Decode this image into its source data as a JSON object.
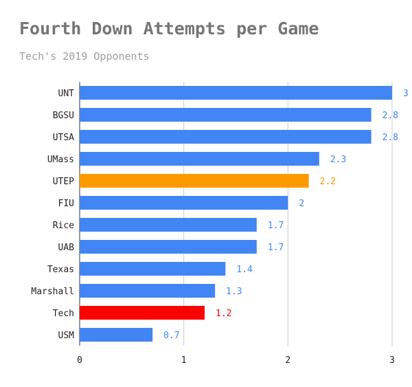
{
  "chart_data": {
    "type": "bar",
    "orientation": "horizontal",
    "title": "Fourth Down Attempts per Game",
    "subtitle": "Tech's 2019 Opponents",
    "categories": [
      "UNT",
      "BGSU",
      "UTSA",
      "UMass",
      "UTEP",
      "FIU",
      "Rice",
      "UAB",
      "Texas",
      "Marshall",
      "Tech",
      "USM"
    ],
    "values": [
      3,
      2.8,
      2.8,
      2.3,
      2.2,
      2,
      1.7,
      1.7,
      1.4,
      1.3,
      1.2,
      0.7
    ],
    "value_labels": [
      "3",
      "2.8",
      "2.8",
      "2.3",
      "2.2",
      "2",
      "1.7",
      "1.7",
      "1.4",
      "1.3",
      "1.2",
      "0.7"
    ],
    "bar_colors": [
      "#4285f4",
      "#4285f4",
      "#4285f4",
      "#4285f4",
      "#ff9900",
      "#4285f4",
      "#4285f4",
      "#4285f4",
      "#4285f4",
      "#4285f4",
      "#ff0000",
      "#4285f4"
    ],
    "xticks": [
      "0",
      "1",
      "2",
      "3"
    ],
    "xlim": [
      0,
      3
    ],
    "xlabel": "",
    "ylabel": "",
    "grid": true,
    "legend": "none"
  }
}
